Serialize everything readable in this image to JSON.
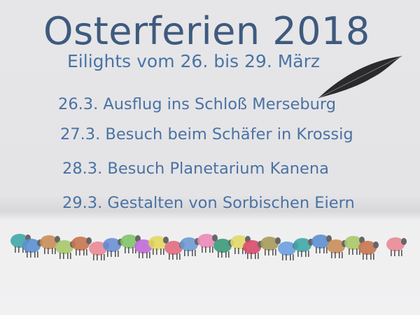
{
  "title": "Osterferien 2018",
  "subtitle": "Eilights vom 26. bis 29. März",
  "items": [
    "26.3. Ausflug ins Schloß Merseburg",
    "27.3. Besuch beim Schäfer in Krossig",
    "28.3. Besuch Planetarium Kanena",
    "29.3. Gestalten von Sorbischen Eiern"
  ],
  "colors": {
    "title": "#3e5a7e",
    "text": "#4a72a4"
  },
  "sheep_palette": [
    "#3fa7a8",
    "#5b8fd0",
    "#c98e5a",
    "#a8c86a",
    "#c8744f",
    "#e88a96",
    "#6b8fd6",
    "#7fc46a",
    "#c06ad8",
    "#e3d860",
    "#e06d7f",
    "#6e9ad2",
    "#e98ab8",
    "#3a9a7a",
    "#e2d86a",
    "#d84a6a",
    "#a89a5a",
    "#6a9ee0"
  ]
}
